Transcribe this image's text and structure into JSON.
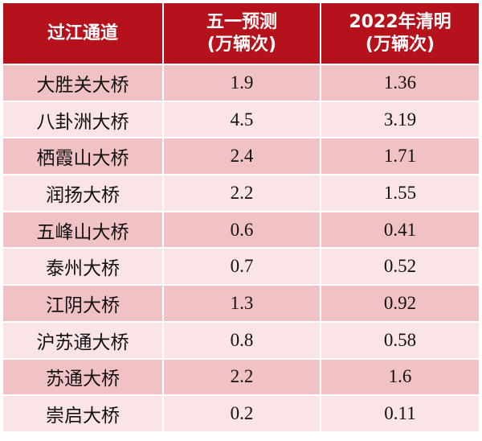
{
  "header": {
    "col1": "过江通道",
    "col2_line1": "五一预测",
    "col2_line2": "(万辆次)",
    "col3_line1": "2022年清明",
    "col3_line2": "(万辆次)"
  },
  "rows": [
    {
      "name": "大胜关大桥",
      "forecast": "1.9",
      "qingming": "1.36"
    },
    {
      "name": "八卦洲大桥",
      "forecast": "4.5",
      "qingming": "3.19"
    },
    {
      "name": "栖霞山大桥",
      "forecast": "2.4",
      "qingming": "1.71"
    },
    {
      "name": "润扬大桥",
      "forecast": "2.2",
      "qingming": "1.55"
    },
    {
      "name": "五峰山大桥",
      "forecast": "0.6",
      "qingming": "0.41"
    },
    {
      "name": "泰州大桥",
      "forecast": "0.7",
      "qingming": "0.52"
    },
    {
      "name": "江阴大桥",
      "forecast": "1.3",
      "qingming": "0.92"
    },
    {
      "name": "沪苏通大桥",
      "forecast": "0.8",
      "qingming": "0.58"
    },
    {
      "name": "苏通大桥",
      "forecast": "2.2",
      "qingming": "1.6"
    },
    {
      "name": "崇启大桥",
      "forecast": "0.2",
      "qingming": "0.11"
    }
  ],
  "colors": {
    "header_bg": "#b5121b",
    "row_dark": "#f1c2c5",
    "row_light": "#fae4e5"
  }
}
